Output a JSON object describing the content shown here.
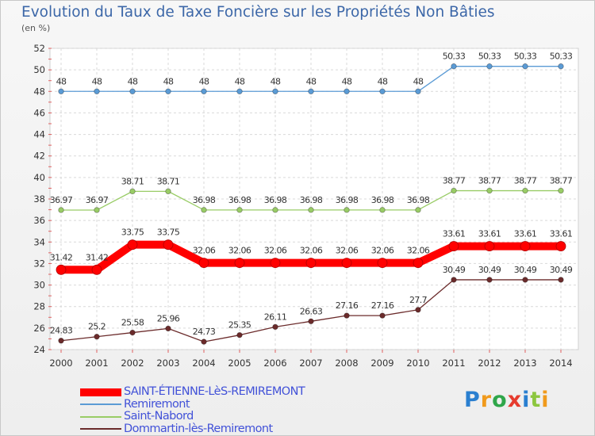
{
  "chart_data": {
    "type": "line",
    "title": "Evolution du Taux de Taxe Foncière sur les Propriétés Non Bâties",
    "subtitle": "(en %)",
    "x": [
      "2000",
      "2001",
      "2002",
      "2003",
      "2004",
      "2005",
      "2006",
      "2007",
      "2008",
      "2009",
      "2010",
      "2011",
      "2012",
      "2013",
      "2014"
    ],
    "ylim": [
      24,
      52
    ],
    "yticks": [
      24,
      26,
      28,
      30,
      32,
      34,
      36,
      38,
      40,
      42,
      44,
      46,
      48,
      50,
      52
    ],
    "grid": true,
    "legend_position": "bottom-left",
    "series": [
      {
        "name": "Remiremont",
        "color": "#5b9bd5",
        "values": [
          48,
          48,
          48,
          48,
          48,
          48,
          48,
          48,
          48,
          48,
          48,
          50.33,
          50.33,
          50.33,
          50.33
        ],
        "labels": [
          "48",
          "48",
          "48",
          "48",
          "48",
          "48",
          "48",
          "48",
          "48",
          "48",
          "48",
          "50.33",
          "50.33",
          "50.33",
          "50.33"
        ]
      },
      {
        "name": "Saint-Nabord",
        "color": "#99cc66",
        "values": [
          36.97,
          36.97,
          38.71,
          38.71,
          36.98,
          36.98,
          36.98,
          36.98,
          36.98,
          36.98,
          36.98,
          38.77,
          38.77,
          38.77,
          38.77
        ],
        "labels": [
          "36.97",
          "36.97",
          "38.71",
          "38.71",
          "36.98",
          "36.98",
          "36.98",
          "36.98",
          "36.98",
          "36.98",
          "36.98",
          "38.77",
          "38.77",
          "38.77",
          "38.77"
        ]
      },
      {
        "name": "SAINT-ÉTIENNE-LèS-REMIREMONT",
        "color": "#ff0000",
        "highlight": true,
        "values": [
          31.42,
          31.42,
          33.75,
          33.75,
          32.06,
          32.06,
          32.06,
          32.06,
          32.06,
          32.06,
          32.06,
          33.61,
          33.61,
          33.61,
          33.61
        ],
        "labels": [
          "31.42",
          "31.42",
          "33.75",
          "33.75",
          "32.06",
          "32.06",
          "32.06",
          "32.06",
          "32.06",
          "32.06",
          "32.06",
          "33.61",
          "33.61",
          "33.61",
          "33.61"
        ]
      },
      {
        "name": "Dommartin-lès-Remiremont",
        "color": "#6b2b2b",
        "values": [
          24.83,
          25.2,
          25.58,
          25.96,
          24.73,
          25.35,
          26.11,
          26.63,
          27.16,
          27.16,
          27.7,
          30.49,
          30.49,
          30.49,
          30.49
        ],
        "labels": [
          "24.83",
          "25.2",
          "25.58",
          "25.96",
          "24.73",
          "25.35",
          "26.11",
          "26.63",
          "27.16",
          "27.16",
          "27.7",
          "30.49",
          "30.49",
          "30.49",
          "30.49"
        ]
      }
    ],
    "legend_order": [
      "SAINT-ÉTIENNE-LèS-REMIREMONT",
      "Remiremont",
      "Saint-Nabord",
      "Dommartin-lès-Remiremont"
    ]
  },
  "logo": {
    "text": "Proxiti",
    "letters": [
      "P",
      "r",
      "o",
      "x",
      "i",
      "t",
      "i"
    ]
  }
}
